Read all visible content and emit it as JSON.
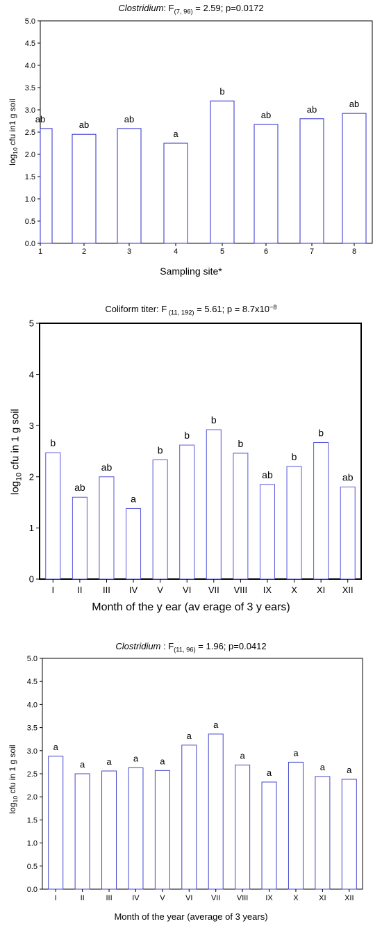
{
  "chart_data": [
    {
      "type": "bar",
      "title": {
        "genus": "Clostridium",
        "stat_label": ": F",
        "df": "(7, 96)",
        "stat_value": " = 2.59; p=0.0172"
      },
      "xlabel": "Sampling site*",
      "ylabel": {
        "prefix": "log",
        "sub": "10",
        "suffix": " cfu in1 g soil"
      },
      "categories": [
        "1",
        "2",
        "3",
        "4",
        "5",
        "6",
        "7",
        "8"
      ],
      "values": [
        2.58,
        2.45,
        2.58,
        2.25,
        3.2,
        2.67,
        2.8,
        2.92
      ],
      "group_labels": [
        "ab",
        "ab",
        "ab",
        "a",
        "b",
        "ab",
        "ab",
        "ab"
      ],
      "ylim": [
        0,
        5
      ],
      "yticks": [
        "0.0",
        "0.5",
        "1.0",
        "1.5",
        "2.0",
        "2.5",
        "3.0",
        "3.5",
        "4.0",
        "4.5",
        "5.0"
      ]
    },
    {
      "type": "bar",
      "title": {
        "genus": "",
        "stat_label": "Coliform titer: F",
        "df": " (11, 192)",
        "stat_value": " = 5.61; p = 8.7x10",
        "exp": "−8"
      },
      "xlabel": "Month of the y ear (av erage of 3 y ears)",
      "ylabel": {
        "prefix": "log",
        "sub": "10",
        "suffix": " cfu in 1 g soil"
      },
      "categories": [
        "I",
        "II",
        "III",
        "IV",
        "V",
        "VI",
        "VII",
        "VIII",
        "IX",
        "X",
        "XI",
        "XII"
      ],
      "values": [
        2.47,
        1.6,
        2.0,
        1.38,
        2.33,
        2.62,
        2.92,
        2.46,
        1.85,
        2.2,
        2.67,
        1.8
      ],
      "group_labels": [
        "b",
        "ab",
        "ab",
        "a",
        "b",
        "b",
        "b",
        "b",
        "ab",
        "b",
        "b",
        "ab"
      ],
      "ylim": [
        0,
        5
      ],
      "yticks": [
        "0",
        "1",
        "2",
        "3",
        "4",
        "5"
      ]
    },
    {
      "type": "bar",
      "title": {
        "genus": "Clostridium",
        "stat_label": " : F",
        "df": "(11, 96)",
        "stat_value": " = 1.96; p=0.0412"
      },
      "xlabel": "Month of the year (average of 3 years)",
      "ylabel": {
        "prefix": "log",
        "sub": "10",
        "suffix": " cfu in 1 g soil"
      },
      "categories": [
        "I",
        "II",
        "III",
        "IV",
        "V",
        "VI",
        "VII",
        "VIII",
        "IX",
        "X",
        "XI",
        "XII"
      ],
      "values": [
        2.88,
        2.5,
        2.56,
        2.63,
        2.57,
        3.12,
        3.36,
        2.69,
        2.32,
        2.75,
        2.44,
        2.38
      ],
      "group_labels": [
        "a",
        "a",
        "a",
        "a",
        "a",
        "a",
        "a",
        "a",
        "a",
        "a",
        "a",
        "a"
      ],
      "ylim": [
        0,
        5
      ],
      "yticks": [
        "0.0",
        "0.5",
        "1.0",
        "1.5",
        "2.0",
        "2.5",
        "3.0",
        "3.5",
        "4.0",
        "4.5",
        "5.0"
      ]
    }
  ]
}
